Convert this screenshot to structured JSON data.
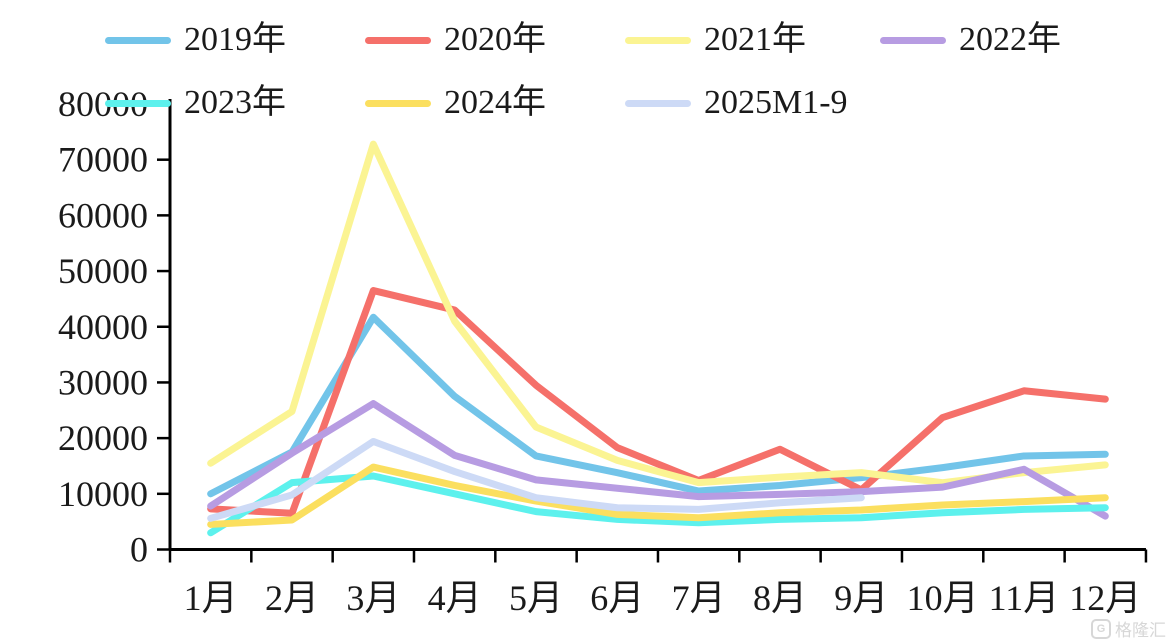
{
  "chart_data": {
    "type": "line",
    "title": "",
    "xlabel": "",
    "ylabel": "",
    "categories": [
      "1月",
      "2月",
      "3月",
      "4月",
      "5月",
      "6月",
      "7月",
      "8月",
      "9月",
      "10月",
      "11月",
      "12月"
    ],
    "series": [
      {
        "name": "2019年",
        "color": "#72C4E9",
        "values": [
          10000,
          17500,
          41700,
          27500,
          16800,
          13800,
          10500,
          11500,
          12900,
          14700,
          16800,
          17100
        ]
      },
      {
        "name": "2020年",
        "color": "#F5706A",
        "values": [
          7300,
          6500,
          46500,
          43000,
          29500,
          18300,
          12400,
          18000,
          10700,
          23700,
          28500,
          27000
        ]
      },
      {
        "name": "2021年",
        "color": "#FBF493",
        "values": [
          15500,
          24800,
          72800,
          41000,
          22000,
          16000,
          12000,
          13000,
          13800,
          12000,
          13800,
          15200
        ]
      },
      {
        "name": "2022年",
        "color": "#B79CE2",
        "values": [
          7800,
          17300,
          26200,
          16900,
          12500,
          11000,
          9500,
          9900,
          10400,
          11200,
          14400,
          6000
        ]
      },
      {
        "name": "2023年",
        "color": "#5DF1ED",
        "values": [
          3000,
          12000,
          13200,
          10000,
          6800,
          5400,
          4800,
          5400,
          5700,
          6600,
          7200,
          7500
        ]
      },
      {
        "name": "2024年",
        "color": "#FBDF5F",
        "values": [
          4500,
          5300,
          14800,
          11500,
          8700,
          6300,
          5700,
          6600,
          7100,
          8000,
          8600,
          9300
        ]
      },
      {
        "name": "2025M1-9",
        "color": "#CDDAF6",
        "values": [
          5600,
          9800,
          19400,
          14000,
          9300,
          7500,
          7200,
          8400,
          9300
        ]
      }
    ],
    "ylim": [
      0,
      80000
    ],
    "y_ticks": [
      0,
      10000,
      20000,
      30000,
      40000,
      50000,
      60000,
      70000,
      80000
    ],
    "grid": false,
    "legend_position": "top"
  },
  "watermark": {
    "text": "格隆汇"
  }
}
